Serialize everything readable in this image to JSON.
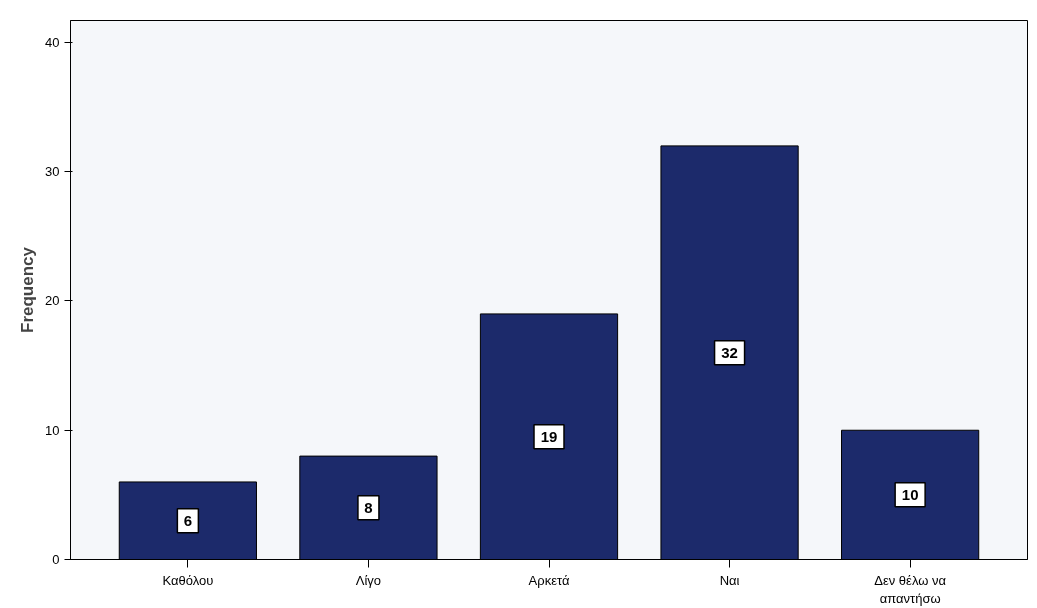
{
  "chart_data": {
    "type": "bar",
    "ylabel": "Frequency",
    "categories": [
      "Καθόλου",
      "Λίγο",
      "Αρκετά",
      "Ναι",
      "Δεν θέλω να\nαπαντήσω"
    ],
    "values": [
      6,
      8,
      19,
      32,
      10
    ],
    "color": "#1c2a6b",
    "ylim": [
      0,
      41.7
    ],
    "yticks": [
      0,
      10,
      20,
      30,
      40
    ],
    "grid": false,
    "data_labels": true
  }
}
